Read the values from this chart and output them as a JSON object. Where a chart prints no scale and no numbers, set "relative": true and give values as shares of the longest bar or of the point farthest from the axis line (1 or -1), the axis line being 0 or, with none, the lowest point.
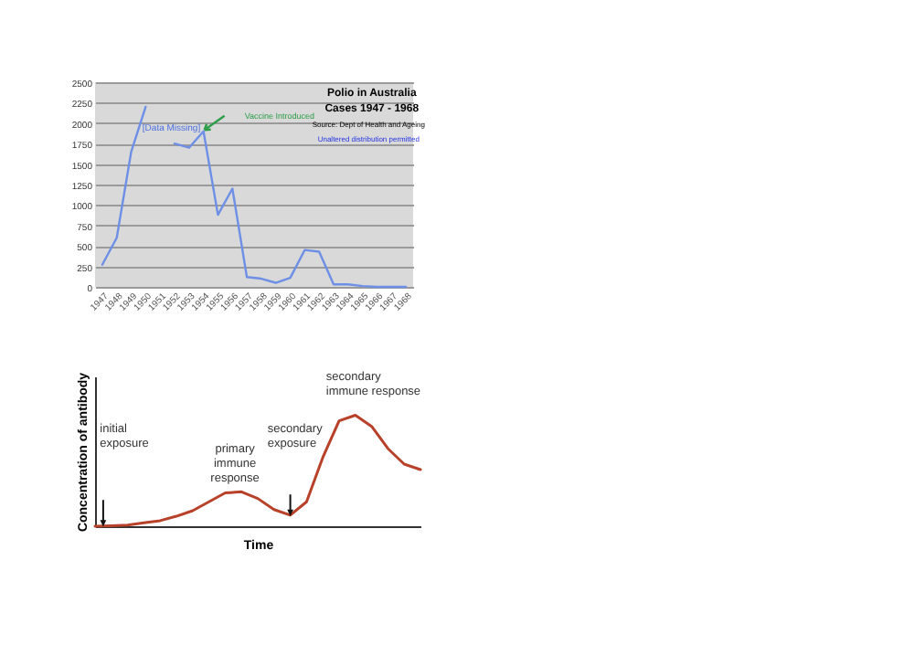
{
  "chart_data": [
    {
      "type": "line",
      "title": "Polio in Australia",
      "subtitle": "Cases 1947 - 1968",
      "categories": [
        "1947",
        "1948",
        "1949",
        "1950",
        "1951",
        "1952",
        "1953",
        "1954",
        "1955",
        "1956",
        "1957",
        "1958",
        "1959",
        "1960",
        "1961",
        "1962",
        "1963",
        "1964",
        "1965",
        "1966",
        "1967",
        "1968"
      ],
      "series": [
        {
          "color": "#6d8fe6",
          "values": [
            270,
            600,
            1650,
            2200,
            null,
            1750,
            1700,
            1900,
            880,
            1200,
            120,
            100,
            50,
            110,
            450,
            430,
            30,
            30,
            10,
            0,
            0,
            0
          ]
        }
      ],
      "ylim": [
        0,
        2500
      ],
      "yticks": [
        0,
        250,
        500,
        750,
        1000,
        1250,
        1500,
        1750,
        2000,
        2250,
        2500
      ],
      "grid": "y",
      "legend": false,
      "marker": "none",
      "annotations": [
        "Vaccine Introduced",
        "[Data Missing]",
        "Source: Dept of Health and Ageing",
        "Unaltered distribution permitted"
      ]
    },
    {
      "type": "line",
      "relative": true,
      "xlabel": "Time",
      "ylabel": "Concentration of antibody",
      "categories": [
        null,
        null,
        null,
        null,
        null,
        null,
        null,
        null,
        null,
        null,
        null,
        null,
        null,
        null,
        null,
        null,
        null,
        null,
        null,
        null,
        null
      ],
      "series": [
        {
          "color": "#b8412a",
          "values": [
            0,
            0.005,
            0.01,
            0.03,
            0.05,
            0.09,
            0.14,
            0.22,
            0.3,
            0.31,
            0.25,
            0.15,
            0.1,
            0.22,
            0.62,
            0.95,
            1,
            0.9,
            0.7,
            0.56,
            0.51
          ]
        }
      ],
      "legend": false,
      "marker": "none",
      "annotations": [
        "initial\nexposure",
        "primary\nimmune\nresponse",
        "secondary\nexposure",
        "secondary\nimmune response"
      ]
    }
  ]
}
